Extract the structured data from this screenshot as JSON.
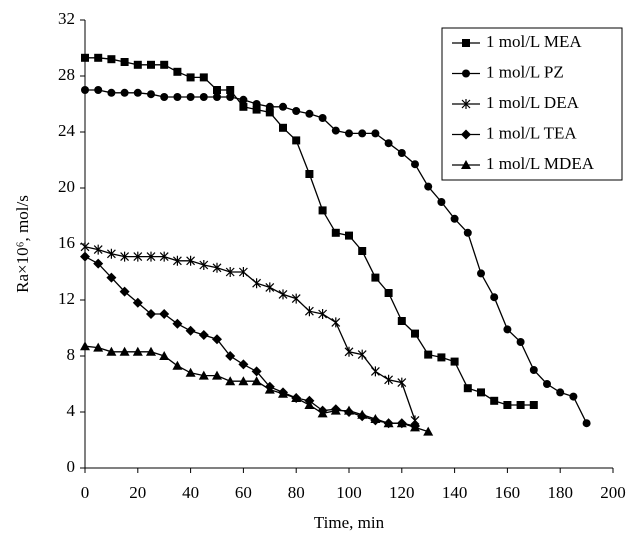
{
  "chart_data": {
    "type": "line",
    "x_label": "Time, min",
    "y_label": "Ra×10⁶, mol/s",
    "xlim": [
      0,
      200
    ],
    "xticks": [
      0,
      20,
      40,
      60,
      80,
      100,
      120,
      140,
      160,
      180,
      200
    ],
    "ylim": [
      0,
      32
    ],
    "yticks": [
      0,
      4,
      8,
      12,
      16,
      20,
      24,
      28,
      32
    ],
    "legend": "top-right",
    "series": [
      {
        "name": "1 mol/L MEA",
        "color": "#000000",
        "marker": "square",
        "x": [
          0,
          5,
          10,
          15,
          20,
          25,
          30,
          35,
          40,
          45,
          50,
          55,
          60,
          65,
          70,
          75,
          80,
          85,
          90,
          95,
          100,
          105,
          110,
          115,
          120,
          125,
          130,
          135,
          140,
          145,
          150,
          155,
          160,
          165,
          170
        ],
        "values": [
          29.3,
          29.3,
          29.2,
          29.0,
          28.8,
          28.8,
          28.8,
          28.3,
          27.9,
          27.9,
          27.0,
          27.0,
          25.8,
          25.6,
          25.4,
          24.3,
          23.4,
          21.0,
          18.4,
          16.8,
          16.6,
          15.5,
          13.6,
          12.5,
          10.5,
          9.6,
          8.1,
          7.9,
          7.6,
          5.7,
          5.4,
          4.8,
          4.5,
          4.5,
          4.5
        ]
      },
      {
        "name": "1 mol/L PZ",
        "color": "#000000",
        "marker": "circle",
        "x": [
          0,
          5,
          10,
          15,
          20,
          25,
          30,
          35,
          40,
          45,
          50,
          55,
          60,
          65,
          70,
          75,
          80,
          85,
          90,
          95,
          100,
          105,
          110,
          115,
          120,
          125,
          130,
          135,
          140,
          145,
          150,
          155,
          160,
          165,
          170,
          175,
          180,
          185,
          190
        ],
        "values": [
          27.0,
          27.0,
          26.8,
          26.8,
          26.8,
          26.7,
          26.5,
          26.5,
          26.5,
          26.5,
          26.5,
          26.5,
          26.3,
          26.0,
          25.8,
          25.8,
          25.5,
          25.3,
          25.0,
          24.1,
          23.9,
          23.9,
          23.9,
          23.2,
          22.5,
          21.7,
          20.1,
          19.0,
          17.8,
          16.8,
          13.9,
          12.2,
          9.9,
          9.0,
          7.0,
          6.0,
          5.4,
          5.1,
          3.2
        ]
      },
      {
        "name": "1 mol/L DEA",
        "color": "#000000",
        "marker": "star",
        "x": [
          0,
          5,
          10,
          15,
          20,
          25,
          30,
          35,
          40,
          45,
          50,
          55,
          60,
          65,
          70,
          75,
          80,
          85,
          90,
          95,
          100,
          105,
          110,
          115,
          120,
          125
        ],
        "values": [
          15.8,
          15.6,
          15.3,
          15.1,
          15.1,
          15.1,
          15.1,
          14.8,
          14.8,
          14.5,
          14.3,
          14.0,
          14.0,
          13.2,
          12.9,
          12.4,
          12.1,
          11.2,
          11.0,
          10.4,
          8.3,
          8.1,
          6.9,
          6.3,
          6.1,
          3.4
        ]
      },
      {
        "name": "1 mol/L TEA",
        "color": "#000000",
        "marker": "diamond",
        "x": [
          0,
          5,
          10,
          15,
          20,
          25,
          30,
          35,
          40,
          45,
          50,
          55,
          60,
          65,
          70,
          75,
          80,
          85,
          90,
          95,
          100,
          105,
          110,
          115,
          120,
          125
        ],
        "values": [
          15.1,
          14.6,
          13.6,
          12.6,
          11.8,
          11.0,
          11.0,
          10.3,
          9.8,
          9.5,
          9.2,
          8.0,
          7.4,
          6.9,
          5.8,
          5.4,
          5.0,
          4.8,
          4.1,
          4.2,
          4.0,
          3.7,
          3.4,
          3.2,
          3.2,
          3.0
        ]
      },
      {
        "name": "1 mol/L MDEA",
        "color": "#000000",
        "marker": "triangle",
        "x": [
          0,
          5,
          10,
          15,
          20,
          25,
          30,
          35,
          40,
          45,
          50,
          55,
          60,
          65,
          70,
          75,
          80,
          85,
          90,
          95,
          100,
          105,
          110,
          115,
          120,
          125,
          130
        ],
        "values": [
          8.7,
          8.6,
          8.3,
          8.3,
          8.3,
          8.3,
          8.0,
          7.3,
          6.8,
          6.6,
          6.6,
          6.2,
          6.2,
          6.2,
          5.6,
          5.3,
          5.0,
          4.5,
          3.9,
          4.1,
          4.1,
          3.8,
          3.5,
          3.2,
          3.2,
          2.9,
          2.6
        ]
      }
    ]
  }
}
